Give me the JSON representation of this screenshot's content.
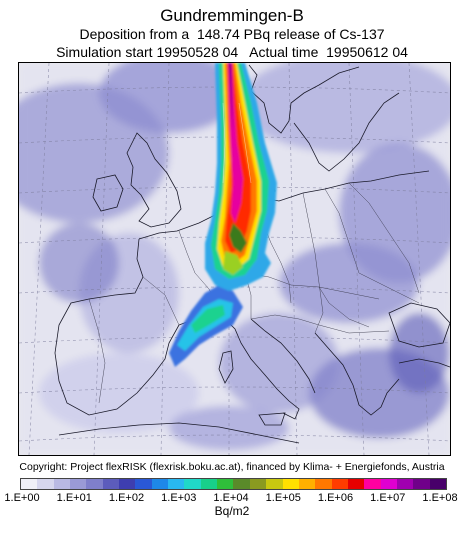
{
  "title": "Gundremmingen-B",
  "subtitle_line1": "Deposition from a  148.74 PBq release of Cs-137",
  "subtitle_line2": "Simulation start 19950528 04   Actual time  19950612 04",
  "copyright": "Copyright: Project flexRISK (flexrisk.boku.ac.at), financed by Klima- + Energiefonds, Austria",
  "colorbar": {
    "unit": "Bq/m2",
    "tick_labels": [
      "1.E+00",
      "1.E+01",
      "1.E+02",
      "1.E+03",
      "1.E+04",
      "1.E+05",
      "1.E+06",
      "1.E+07",
      "1.E+08"
    ],
    "colors": [
      "#efeff7",
      "#d6d6ee",
      "#b9b9e3",
      "#9a9ad6",
      "#7f7fcb",
      "#5c5cbc",
      "#3e3eb0",
      "#2a58d6",
      "#1e88e8",
      "#29b8f0",
      "#20d8c8",
      "#18d08a",
      "#2fbf3a",
      "#5a8a2a",
      "#8a9a20",
      "#c8c810",
      "#ffe000",
      "#ffb000",
      "#ff7800",
      "#ff3c00",
      "#e60000",
      "#ff00a0",
      "#e000d0",
      "#a000b0",
      "#70008a",
      "#48006a"
    ]
  }
}
